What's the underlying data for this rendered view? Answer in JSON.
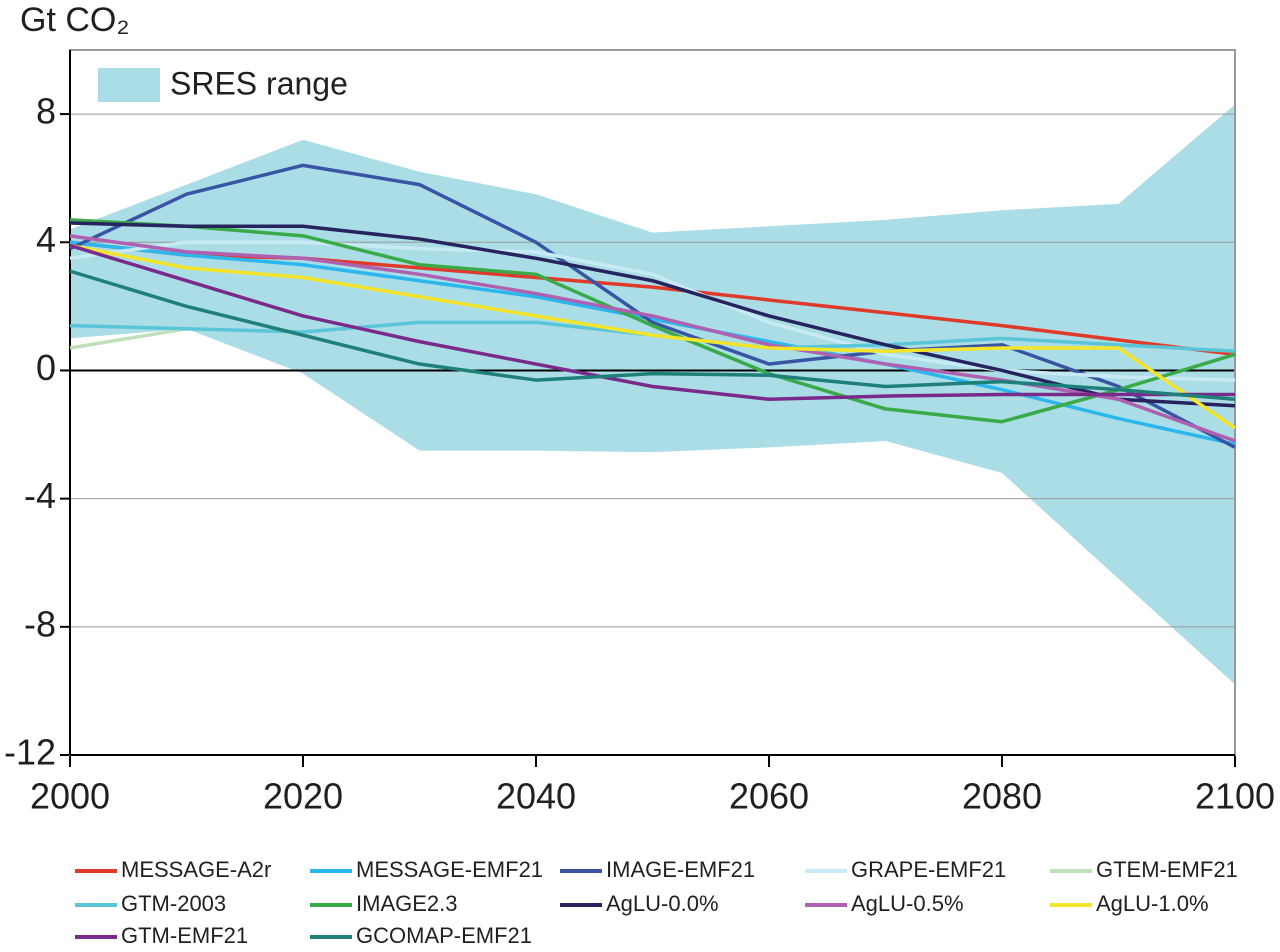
{
  "chart_data": {
    "type": "line",
    "y_label": "Gt CO₂",
    "x": [
      2000,
      2010,
      2020,
      2030,
      2040,
      2050,
      2060,
      2070,
      2080,
      2090,
      2100
    ],
    "xlim": [
      2000,
      2100
    ],
    "xticks": [
      2000,
      2020,
      2040,
      2060,
      2080,
      2100
    ],
    "ylim": [
      -12,
      10
    ],
    "yticks": [
      8,
      4,
      0,
      -4,
      -8,
      -12
    ],
    "grid": true,
    "band": {
      "name": "SRES range",
      "color": "#aadde6",
      "upper": [
        4.4,
        5.8,
        7.2,
        6.2,
        5.5,
        4.3,
        4.5,
        4.7,
        5.0,
        5.2,
        8.3
      ],
      "lower": [
        1.0,
        1.3,
        -0.1,
        -2.5,
        -2.5,
        -2.55,
        -2.4,
        -2.2,
        -3.2,
        -6.5,
        -9.8
      ]
    },
    "series": [
      {
        "name": "MESSAGE-A2r",
        "color": "#e03a2a",
        "values": [
          4.0,
          3.6,
          3.5,
          3.2,
          2.9,
          2.6,
          2.2,
          1.8,
          1.4,
          0.95,
          0.5
        ]
      },
      {
        "name": "MESSAGE-EMF21",
        "color": "#2bb6ee",
        "values": [
          4.0,
          3.6,
          3.3,
          2.8,
          2.3,
          1.6,
          0.9,
          0.2,
          -0.6,
          -1.5,
          -2.3
        ]
      },
      {
        "name": "IMAGE-EMF21",
        "color": "#3a54a4",
        "values": [
          3.8,
          5.5,
          6.4,
          5.8,
          4.0,
          1.5,
          0.2,
          0.6,
          0.8,
          -0.5,
          -2.4
        ]
      },
      {
        "name": "GRAPE-EMF21",
        "color": "#c8eaf4",
        "values": [
          3.5,
          4.0,
          4.0,
          3.8,
          3.7,
          3.0,
          1.5,
          0.5,
          0.0,
          -0.2,
          -0.3
        ]
      },
      {
        "name": "GTEM-EMF21",
        "color": "#c0e0b8",
        "values": [
          0.7,
          1.3,
          null,
          null,
          null,
          null,
          null,
          null,
          null,
          null,
          null
        ]
      },
      {
        "name": "GTM-2003",
        "color": "#5bc5d8",
        "values": [
          1.4,
          1.3,
          1.2,
          1.5,
          1.5,
          1.1,
          0.7,
          0.8,
          1.0,
          0.8,
          0.6
        ]
      },
      {
        "name": "IMAGE2.3",
        "color": "#3aaa48",
        "values": [
          4.7,
          4.5,
          4.2,
          3.3,
          3.0,
          1.4,
          -0.1,
          -1.2,
          -1.6,
          -0.6,
          0.5
        ]
      },
      {
        "name": "AgLU-0.0%",
        "color": "#27235e",
        "values": [
          4.6,
          4.5,
          4.5,
          4.1,
          3.5,
          2.8,
          1.7,
          0.8,
          0.0,
          -0.9,
          -1.1
        ]
      },
      {
        "name": "AgLU-0.5%",
        "color": "#b060b0",
        "values": [
          4.2,
          3.7,
          3.5,
          3.0,
          2.4,
          1.7,
          0.8,
          0.2,
          -0.3,
          -0.9,
          -2.2
        ]
      },
      {
        "name": "AgLU-1.0%",
        "color": "#f5e52a",
        "values": [
          3.9,
          3.2,
          2.9,
          2.3,
          1.7,
          1.1,
          0.7,
          0.6,
          0.7,
          0.7,
          -1.8
        ]
      },
      {
        "name": "GTM-EMF21",
        "color": "#7a2a8a",
        "values": [
          3.9,
          2.8,
          1.7,
          0.9,
          0.2,
          -0.5,
          -0.9,
          -0.8,
          -0.75,
          -0.75,
          -0.75
        ]
      },
      {
        "name": "GCOMAP-EMF21",
        "color": "#1e8078",
        "values": [
          3.1,
          2.0,
          1.1,
          0.2,
          -0.3,
          -0.1,
          -0.15,
          -0.5,
          -0.35,
          -0.6,
          -0.9
        ]
      }
    ]
  }
}
